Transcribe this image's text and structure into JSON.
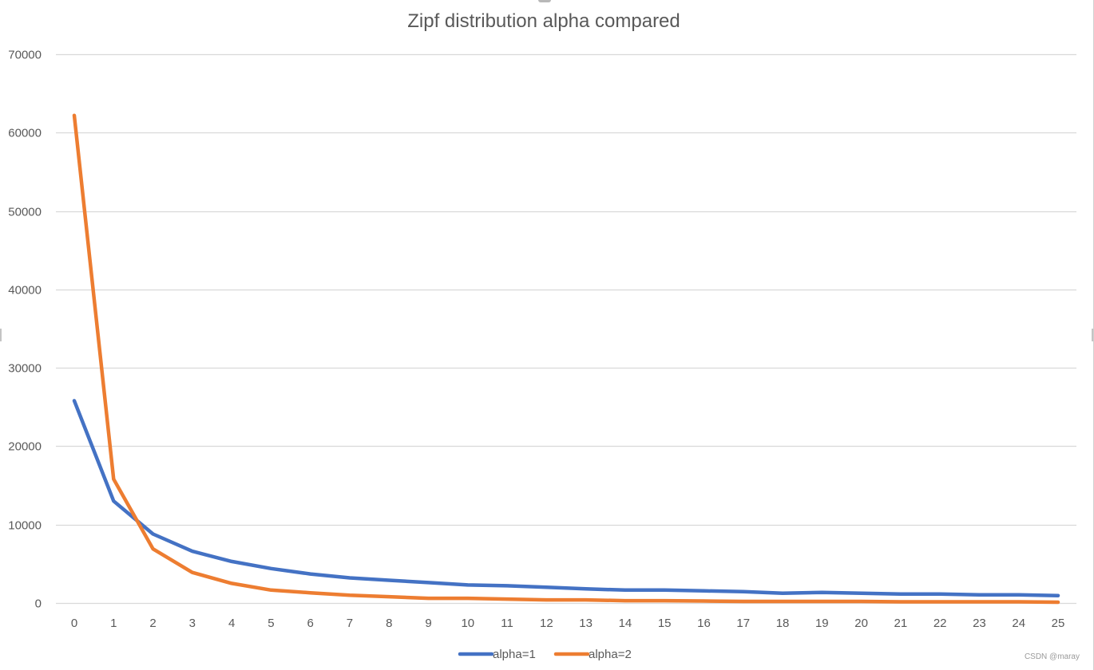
{
  "chart_data": {
    "type": "line",
    "title": "Zipf distribution alpha compared",
    "xlabel": "",
    "ylabel": "",
    "x": [
      0,
      1,
      2,
      3,
      4,
      5,
      6,
      7,
      8,
      9,
      10,
      11,
      12,
      13,
      14,
      15,
      16,
      17,
      18,
      19,
      20,
      21,
      22,
      23,
      24,
      25
    ],
    "categories": [
      "0",
      "1",
      "2",
      "3",
      "4",
      "5",
      "6",
      "7",
      "8",
      "9",
      "10",
      "11",
      "12",
      "13",
      "14",
      "15",
      "16",
      "17",
      "18",
      "19",
      "20",
      "21",
      "22",
      "23",
      "24",
      "25"
    ],
    "ylim": [
      0,
      70000
    ],
    "yticks": [
      0,
      10000,
      20000,
      30000,
      40000,
      50000,
      60000,
      70000
    ],
    "ytick_labels": [
      "0",
      "10000",
      "20000",
      "30000",
      "40000",
      "50000",
      "60000",
      "70000"
    ],
    "grid": true,
    "legend_position": "bottom",
    "series": [
      {
        "name": "alpha=1",
        "color": "#4472C4",
        "values": [
          25800,
          13000,
          8800,
          6600,
          5300,
          4400,
          3700,
          3200,
          2900,
          2600,
          2300,
          2200,
          2000,
          1800,
          1650,
          1650,
          1550,
          1450,
          1250,
          1350,
          1250,
          1150,
          1150,
          1050,
          1050,
          950
        ]
      },
      {
        "name": "alpha=2",
        "color": "#ED7D31",
        "values": [
          62200,
          15800,
          6900,
          3900,
          2500,
          1650,
          1300,
          1000,
          800,
          600,
          600,
          500,
          400,
          400,
          300,
          300,
          250,
          200,
          200,
          200,
          200,
          150,
          150,
          150,
          150,
          100
        ]
      }
    ]
  },
  "watermark": "CSDN @maray",
  "style": {
    "grid_color": "#d9d9d9",
    "text_color": "#595959",
    "title_color": "#595959"
  }
}
